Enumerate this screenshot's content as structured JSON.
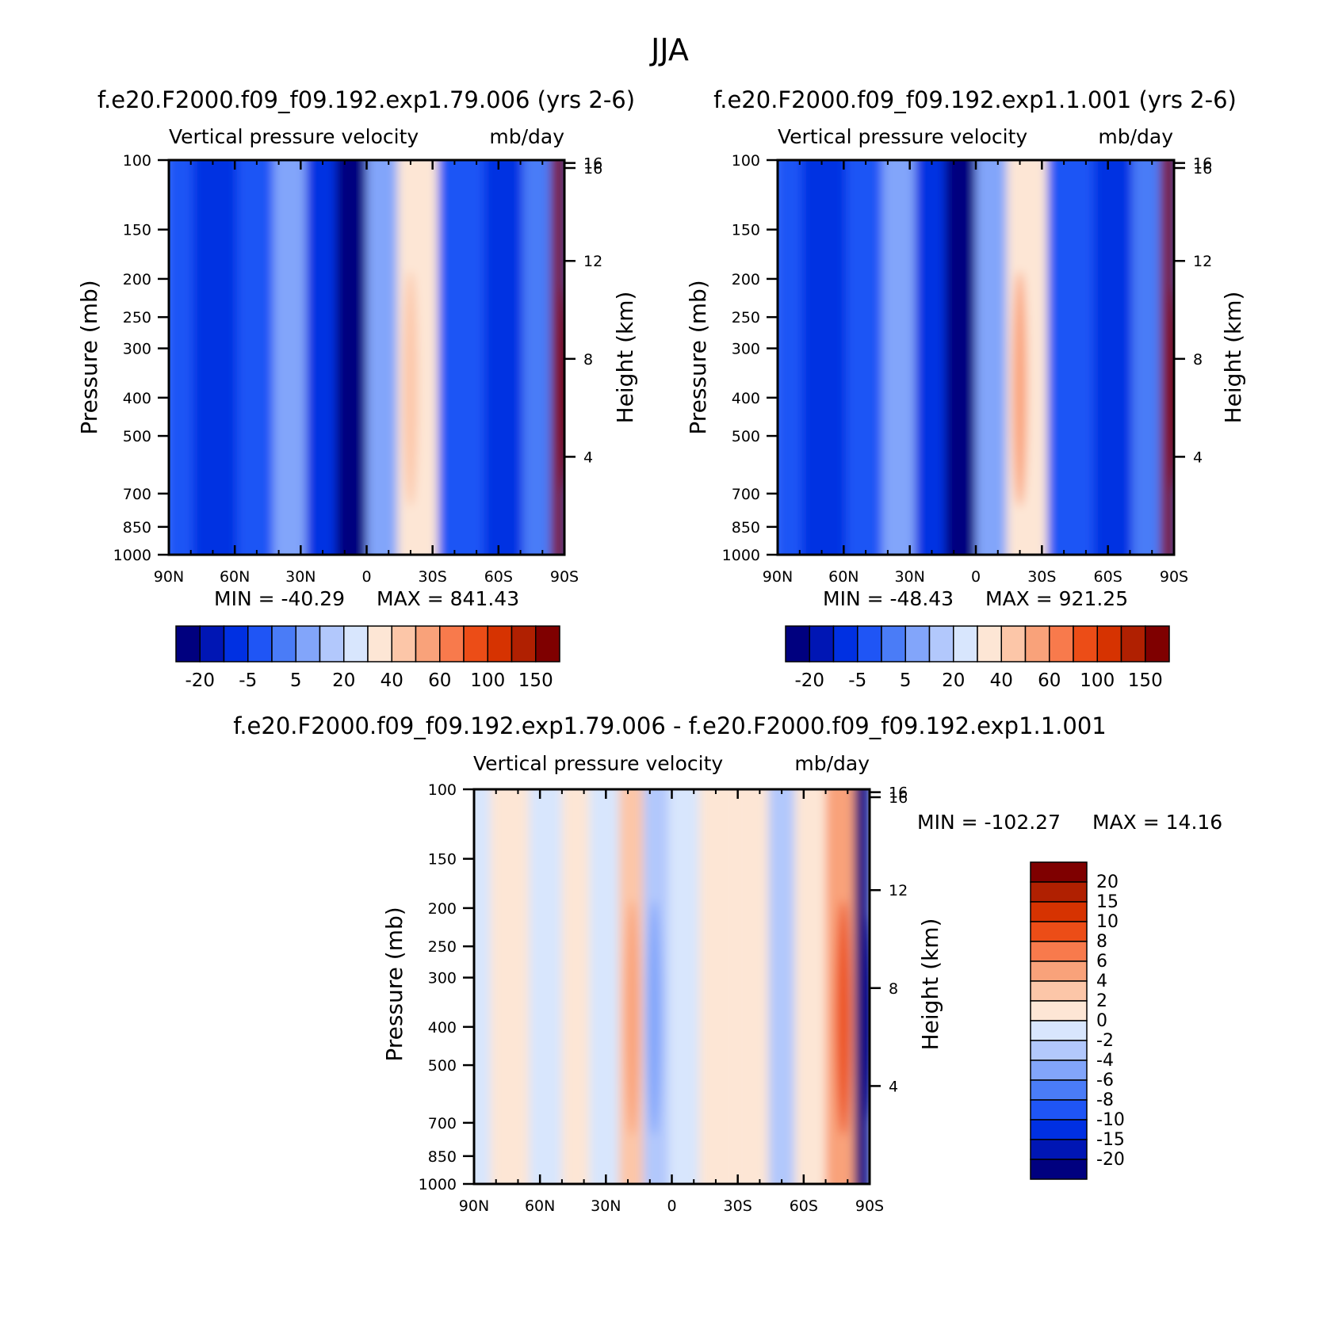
{
  "figure": {
    "season": "JJA"
  },
  "colors": {
    "top_palette": [
      "#00007f",
      "#0016b4",
      "#0030e2",
      "#1f55f5",
      "#4a7cf7",
      "#82a5fa",
      "#b2c8fc",
      "#d8e6fd",
      "#fde6d5",
      "#fcc6a8",
      "#f9a27a",
      "#f87a4c",
      "#ec4d17",
      "#d63301",
      "#b02001",
      "#7f0000"
    ],
    "diff_palette": [
      "#00007f",
      "#0016b4",
      "#0030e2",
      "#1f55f5",
      "#4a7cf7",
      "#82a5fa",
      "#b2c8fc",
      "#d8e6fd",
      "#fde6d5",
      "#fcc6a8",
      "#f9a27a",
      "#f87a4c",
      "#ec4d17",
      "#d63301",
      "#b02001",
      "#7f0000"
    ]
  },
  "chart_data": [
    {
      "type": "heatmap",
      "panel": "top-left",
      "case_title": "f.e20.F2000.f09_f09.192.exp1.79.006 (yrs 2-6)",
      "variable": "Vertical pressure velocity",
      "units": "mb/day",
      "xlabel": "",
      "ylabel": "Pressure (mb)",
      "ylabel_right": "Height (km)",
      "x_ticks": [
        "90N",
        "60N",
        "30N",
        "0",
        "30S",
        "60S",
        "90S"
      ],
      "x_tick_values": [
        90,
        60,
        30,
        0,
        -30,
        -60,
        -90
      ],
      "y_ticks": [
        100,
        150,
        200,
        250,
        300,
        400,
        500,
        700,
        850,
        1000
      ],
      "y_right_ticks": [
        4,
        8,
        12,
        16
      ],
      "ylim": [
        1000,
        100
      ],
      "min_label": "MIN = -40.29",
      "max_label": "MAX = 841.43",
      "min": -40.29,
      "max": 841.43,
      "colorbar_labels": [
        "-20",
        "-5",
        "5",
        "20",
        "40",
        "60",
        "100",
        "150"
      ],
      "colorbar_levels": [
        -30,
        -20,
        -10,
        -5,
        0,
        5,
        10,
        20,
        30,
        40,
        50,
        60,
        80,
        100,
        120,
        150
      ],
      "features": [
        {
          "lat": 90,
          "value": -6
        },
        {
          "lat": 68,
          "value": -10
        },
        {
          "lat": 50,
          "value": -8
        },
        {
          "lat": 35,
          "value": 4
        },
        {
          "lat": 20,
          "value": -12
        },
        {
          "lat": 8,
          "value": -30
        },
        {
          "lat": -8,
          "value": 2
        },
        {
          "lat": -20,
          "value": 28
        },
        {
          "lat": -45,
          "value": -6
        },
        {
          "lat": -62,
          "value": -12
        },
        {
          "lat": -80,
          "value": -4
        },
        {
          "lat": -88,
          "value": 150
        }
      ]
    },
    {
      "type": "heatmap",
      "panel": "top-right",
      "case_title": "f.e20.F2000.f09_f09.192.exp1.1.001 (yrs 2-6)",
      "variable": "Vertical pressure velocity",
      "units": "mb/day",
      "xlabel": "",
      "ylabel": "Pressure (mb)",
      "ylabel_right": "Height (km)",
      "x_ticks": [
        "90N",
        "60N",
        "30N",
        "0",
        "30S",
        "60S",
        "90S"
      ],
      "x_tick_values": [
        90,
        60,
        30,
        0,
        -30,
        -60,
        -90
      ],
      "y_ticks": [
        100,
        150,
        200,
        250,
        300,
        400,
        500,
        700,
        850,
        1000
      ],
      "y_right_ticks": [
        4,
        8,
        12,
        16
      ],
      "ylim": [
        1000,
        100
      ],
      "min_label": "MIN = -48.43",
      "max_label": "MAX = 921.25",
      "min": -48.43,
      "max": 921.25,
      "colorbar_labels": [
        "-20",
        "-5",
        "5",
        "20",
        "40",
        "60",
        "100",
        "150"
      ],
      "colorbar_levels": [
        -30,
        -20,
        -10,
        -5,
        0,
        5,
        10,
        20,
        30,
        40,
        50,
        60,
        80,
        100,
        120,
        150
      ],
      "features": [
        {
          "lat": 90,
          "value": -6
        },
        {
          "lat": 68,
          "value": -10
        },
        {
          "lat": 50,
          "value": -8
        },
        {
          "lat": 35,
          "value": 4
        },
        {
          "lat": 20,
          "value": -12
        },
        {
          "lat": 8,
          "value": -35
        },
        {
          "lat": -8,
          "value": 2
        },
        {
          "lat": -20,
          "value": 30
        },
        {
          "lat": -45,
          "value": -6
        },
        {
          "lat": -62,
          "value": -14
        },
        {
          "lat": -80,
          "value": -4
        },
        {
          "lat": -88,
          "value": 150
        }
      ]
    },
    {
      "type": "heatmap",
      "panel": "bottom-difference",
      "case_title": "f.e20.F2000.f09_f09.192.exp1.79.006 - f.e20.F2000.f09_f09.192.exp1.1.001",
      "variable": "Vertical pressure velocity",
      "units": "mb/day",
      "xlabel": "",
      "ylabel": "Pressure (mb)",
      "ylabel_right": "Height (km)",
      "x_ticks": [
        "90N",
        "60N",
        "30N",
        "0",
        "30S",
        "60S",
        "90S"
      ],
      "x_tick_values": [
        90,
        60,
        30,
        0,
        -30,
        -60,
        -90
      ],
      "y_ticks": [
        100,
        150,
        200,
        250,
        300,
        400,
        500,
        700,
        850,
        1000
      ],
      "y_right_ticks": [
        4,
        8,
        12,
        16
      ],
      "ylim": [
        1000,
        100
      ],
      "min_label": "MIN = -102.27",
      "max_label": "MAX = 14.16",
      "min": -102.27,
      "max": 14.16,
      "colorbar_labels": [
        "20",
        "15",
        "10",
        "8",
        "6",
        "4",
        "2",
        "0",
        "-2",
        "-4",
        "-6",
        "-8",
        "-10",
        "-15",
        "-20"
      ],
      "colorbar_levels": [
        -20,
        -15,
        -10,
        -8,
        -6,
        -4,
        -2,
        0,
        2,
        4,
        6,
        8,
        10,
        15,
        20
      ],
      "features": [
        {
          "lat": 90,
          "value": -1
        },
        {
          "lat": 75,
          "value": 1
        },
        {
          "lat": 55,
          "value": -1
        },
        {
          "lat": 45,
          "value": 1
        },
        {
          "lat": 30,
          "value": -1
        },
        {
          "lat": 18,
          "value": 3
        },
        {
          "lat": 8,
          "value": -3
        },
        {
          "lat": -5,
          "value": -1
        },
        {
          "lat": -20,
          "value": 1
        },
        {
          "lat": -38,
          "value": 1
        },
        {
          "lat": -50,
          "value": -2
        },
        {
          "lat": -62,
          "value": 1
        },
        {
          "lat": -78,
          "value": 6
        },
        {
          "lat": -88,
          "value": -20
        }
      ]
    }
  ]
}
